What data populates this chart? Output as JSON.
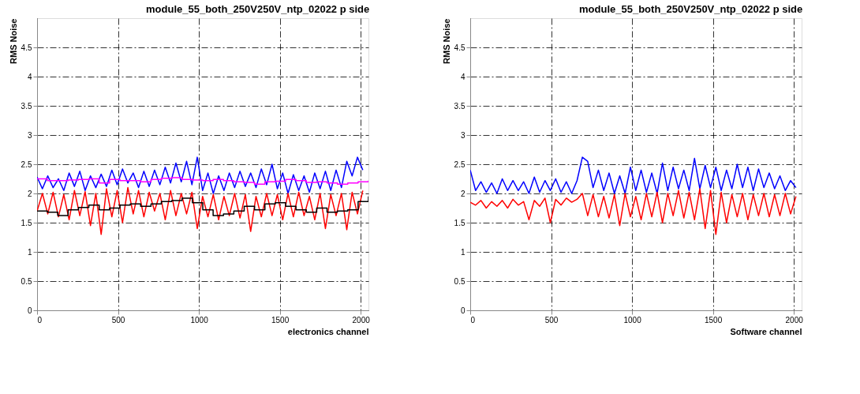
{
  "chart_data": [
    {
      "type": "line",
      "title": "module_55_both_250V250V_ntp_02022 p side",
      "xlabel": "electronics channel",
      "ylabel": "RMS Noise",
      "xlim": [
        0,
        2048
      ],
      "xticks": [
        0,
        500,
        1000,
        1500,
        2000
      ],
      "ylim": [
        0,
        5
      ],
      "yticks": [
        0,
        0.5,
        1,
        1.5,
        2,
        2.5,
        3,
        3.5,
        4,
        4.5
      ],
      "grid": true,
      "x": [
        0,
        33,
        66,
        99,
        132,
        165,
        198,
        231,
        264,
        297,
        330,
        363,
        396,
        429,
        462,
        495,
        528,
        561,
        594,
        627,
        660,
        693,
        726,
        759,
        792,
        825,
        858,
        891,
        924,
        957,
        990,
        1023,
        1056,
        1089,
        1122,
        1155,
        1188,
        1221,
        1254,
        1287,
        1320,
        1353,
        1386,
        1419,
        1452,
        1485,
        1518,
        1551,
        1584,
        1617,
        1650,
        1683,
        1716,
        1749,
        1782,
        1815,
        1848,
        1881,
        1914,
        1947,
        1980,
        2013
      ],
      "series": [
        {
          "color": "#0000ff",
          "values": [
            2.28,
            2.08,
            2.3,
            2.1,
            2.25,
            2.05,
            2.35,
            2.12,
            2.38,
            2.05,
            2.3,
            2.1,
            2.33,
            2.12,
            2.4,
            2.15,
            2.42,
            2.18,
            2.35,
            2.1,
            2.38,
            2.12,
            2.4,
            2.15,
            2.45,
            2.18,
            2.52,
            2.2,
            2.55,
            2.15,
            2.62,
            2.05,
            2.35,
            2.0,
            2.3,
            2.05,
            2.35,
            2.1,
            2.38,
            2.12,
            2.35,
            2.1,
            2.42,
            2.15,
            2.5,
            2.08,
            2.35,
            2.0,
            2.32,
            2.05,
            2.3,
            2.02,
            2.35,
            2.08,
            2.38,
            2.05,
            2.4,
            2.1,
            2.55,
            2.3,
            2.62,
            2.4
          ]
        },
        {
          "color": "#ff0000",
          "values": [
            1.7,
            2.0,
            1.65,
            2.02,
            1.6,
            1.98,
            1.55,
            2.05,
            1.62,
            2.03,
            1.45,
            2.0,
            1.3,
            2.08,
            1.6,
            2.05,
            1.5,
            2.1,
            1.65,
            2.05,
            1.6,
            2.02,
            1.7,
            2.0,
            1.55,
            2.05,
            1.62,
            2.0,
            1.65,
            2.02,
            1.4,
            1.95,
            1.6,
            1.98,
            1.55,
            1.95,
            1.62,
            2.0,
            1.58,
            1.98,
            1.35,
            1.95,
            1.6,
            2.0,
            1.62,
            1.98,
            1.55,
            2.0,
            1.6,
            2.02,
            1.62,
            1.95,
            1.55,
            2.0,
            1.4,
            1.98,
            1.62,
            2.0,
            1.38,
            2.02,
            1.65,
            2.05
          ]
        },
        {
          "type": "step",
          "color": "#ff00ff",
          "x": [
            0,
            64,
            128,
            192,
            256,
            320,
            384,
            448,
            512,
            576,
            640,
            704,
            768,
            832,
            896,
            960,
            1024,
            1088,
            1152,
            1216,
            1280,
            1344,
            1408,
            1472,
            1536,
            1600,
            1664,
            1728,
            1792,
            1856,
            1920,
            1984,
            2048
          ],
          "values": [
            2.25,
            2.22,
            2.22,
            2.23,
            2.24,
            2.25,
            2.18,
            2.24,
            2.22,
            2.22,
            2.2,
            2.24,
            2.26,
            2.27,
            2.24,
            2.23,
            2.22,
            2.24,
            2.22,
            2.2,
            2.19,
            2.16,
            2.2,
            2.21,
            2.24,
            2.22,
            2.19,
            2.2,
            2.18,
            2.16,
            2.18,
            2.2,
            2.22
          ]
        },
        {
          "type": "step",
          "color": "#000000",
          "x": [
            0,
            64,
            128,
            192,
            256,
            320,
            384,
            448,
            512,
            576,
            640,
            704,
            768,
            832,
            896,
            960,
            1024,
            1088,
            1152,
            1216,
            1280,
            1344,
            1408,
            1472,
            1536,
            1600,
            1664,
            1728,
            1792,
            1856,
            1920,
            1984,
            2048
          ],
          "values": [
            1.7,
            1.68,
            1.62,
            1.72,
            1.76,
            1.8,
            1.72,
            1.75,
            1.8,
            1.82,
            1.78,
            1.82,
            1.86,
            1.88,
            1.92,
            1.84,
            1.72,
            1.62,
            1.65,
            1.7,
            1.78,
            1.72,
            1.82,
            1.84,
            1.78,
            1.72,
            1.68,
            1.75,
            1.68,
            1.7,
            1.72,
            1.86,
            1.95
          ]
        }
      ]
    },
    {
      "type": "line",
      "title": "module_55_both_250V250V_ntp_02022 p side",
      "xlabel": "Software channel",
      "ylabel": "RMS Noise",
      "xlim": [
        0,
        2048
      ],
      "xticks": [
        0,
        500,
        1000,
        1500,
        2000
      ],
      "ylim": [
        0,
        5
      ],
      "yticks": [
        0,
        0.5,
        1,
        1.5,
        2,
        2.5,
        3,
        3.5,
        4,
        4.5
      ],
      "grid": true,
      "x": [
        0,
        33,
        66,
        99,
        132,
        165,
        198,
        231,
        264,
        297,
        330,
        363,
        396,
        429,
        462,
        495,
        528,
        561,
        594,
        627,
        660,
        693,
        726,
        759,
        792,
        825,
        858,
        891,
        924,
        957,
        990,
        1023,
        1056,
        1089,
        1122,
        1155,
        1188,
        1221,
        1254,
        1287,
        1320,
        1353,
        1386,
        1419,
        1452,
        1485,
        1518,
        1551,
        1584,
        1617,
        1650,
        1683,
        1716,
        1749,
        1782,
        1815,
        1848,
        1881,
        1914,
        1947,
        1980,
        2013
      ],
      "series": [
        {
          "color": "#0000ff",
          "values": [
            2.4,
            2.05,
            2.2,
            2.02,
            2.18,
            2.0,
            2.25,
            2.05,
            2.22,
            2.05,
            2.2,
            2.0,
            2.28,
            2.02,
            2.22,
            2.05,
            2.25,
            2.02,
            2.2,
            2.0,
            2.22,
            2.62,
            2.55,
            2.1,
            2.4,
            2.05,
            2.35,
            2.0,
            2.3,
            2.0,
            2.45,
            2.05,
            2.4,
            2.02,
            2.35,
            2.0,
            2.52,
            2.05,
            2.45,
            2.08,
            2.4,
            2.05,
            2.6,
            2.08,
            2.48,
            2.1,
            2.45,
            2.05,
            2.4,
            2.08,
            2.5,
            2.1,
            2.45,
            2.05,
            2.42,
            2.1,
            2.35,
            2.08,
            2.3,
            2.05,
            2.22,
            2.1
          ]
        },
        {
          "color": "#ff0000",
          "values": [
            1.85,
            1.8,
            1.88,
            1.75,
            1.86,
            1.78,
            1.88,
            1.75,
            1.9,
            1.8,
            1.86,
            1.55,
            1.88,
            1.78,
            1.92,
            1.5,
            1.9,
            1.8,
            1.92,
            1.85,
            1.9,
            2.0,
            1.62,
            1.98,
            1.6,
            1.95,
            1.58,
            1.98,
            1.45,
            2.0,
            1.6,
            1.95,
            1.55,
            2.0,
            1.6,
            2.02,
            1.5,
            2.0,
            1.62,
            2.05,
            1.58,
            2.02,
            1.55,
            2.08,
            1.4,
            2.05,
            1.3,
            2.02,
            1.5,
            1.98,
            1.6,
            2.0,
            1.55,
            1.98,
            1.62,
            2.0,
            1.6,
            1.98,
            1.62,
            2.0,
            1.65,
            1.95
          ]
        }
      ]
    }
  ]
}
